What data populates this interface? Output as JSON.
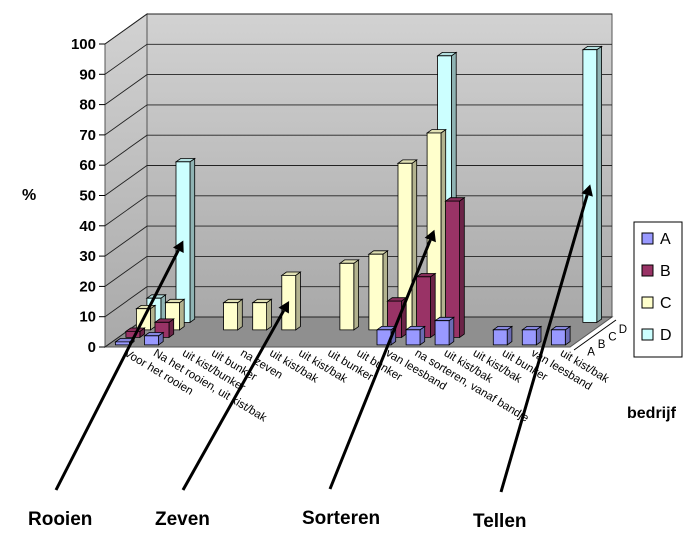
{
  "chart_data": {
    "type": "bar",
    "subtype": "3d-column",
    "ylabel": "%",
    "zlabel": "bedrijf",
    "ylim": [
      0,
      100
    ],
    "yticks": [
      0,
      10,
      20,
      30,
      40,
      50,
      60,
      70,
      80,
      90,
      100
    ],
    "grid": true,
    "legend": {
      "position": "right",
      "entries": [
        "A",
        "B",
        "C",
        "D"
      ]
    },
    "depth_labels": [
      "A",
      "B",
      "C",
      "D"
    ],
    "categories": [
      "Voor het rooien",
      "Na het rooien, uit kist/bak",
      "uit kist/bunker",
      "uit bunker",
      "na zeven",
      "uit kist/bak",
      "uit kist/bak",
      "uit bunker",
      "uit bunker",
      "van leesband",
      "na sorteren, vanaf bandje",
      "uit kist/bak",
      "uit kist/bak",
      "uit bunker",
      "van leesband",
      "uit kist/bak"
    ],
    "series": [
      {
        "name": "A",
        "color": "#9999ff",
        "values": [
          1,
          3,
          null,
          null,
          null,
          null,
          null,
          null,
          null,
          5,
          5,
          8,
          null,
          5,
          5,
          5
        ]
      },
      {
        "name": "B",
        "color": "#993366",
        "values": [
          2,
          5,
          null,
          null,
          null,
          null,
          null,
          null,
          null,
          12,
          20,
          45,
          null,
          null,
          null,
          null
        ]
      },
      {
        "name": "C",
        "color": "#ffffcc",
        "values": [
          7,
          9,
          null,
          9,
          9,
          18,
          null,
          22,
          25,
          55,
          65,
          null,
          null,
          null,
          null,
          null
        ]
      },
      {
        "name": "D",
        "color": "#ccffff",
        "values": [
          8,
          53,
          null,
          null,
          null,
          null,
          null,
          null,
          null,
          null,
          88,
          null,
          null,
          null,
          null,
          90
        ]
      }
    ],
    "annotations": [
      {
        "text": "Rooien",
        "category_index": 1,
        "series": "D"
      },
      {
        "text": "Zeven",
        "category_index": 5,
        "series": "C"
      },
      {
        "text": "Sorteren",
        "category_index": 10,
        "series": "C"
      },
      {
        "text": "Tellen",
        "category_index": 15,
        "series": "D"
      }
    ]
  }
}
